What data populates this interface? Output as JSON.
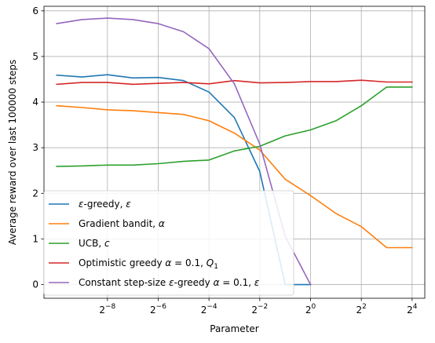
{
  "chart_data": {
    "type": "line",
    "xlabel": "Parameter",
    "ylabel": "Average reward over last 100000 steps",
    "x_scale": "log2",
    "xlim_exponent": [
      -10.5,
      4.5
    ],
    "ylim": [
      -0.3,
      6.1
    ],
    "x_tick_exponents": [
      -8,
      -6,
      -4,
      -2,
      0,
      2,
      4
    ],
    "x_tick_labels": [
      {
        "base": "2",
        "exp": "−8"
      },
      {
        "base": "2",
        "exp": "−6"
      },
      {
        "base": "2",
        "exp": "−4"
      },
      {
        "base": "2",
        "exp": "−2"
      },
      {
        "base": "2",
        "exp": "0"
      },
      {
        "base": "2",
        "exp": "2"
      },
      {
        "base": "2",
        "exp": "4"
      }
    ],
    "y_ticks": [
      0,
      1,
      2,
      3,
      4,
      5,
      6
    ],
    "y_tick_labels": [
      "0",
      "1",
      "2",
      "3",
      "4",
      "5",
      "6"
    ],
    "grid": true,
    "legend_position": "lower-left",
    "series": [
      {
        "legend_parts": [
          {
            "t": "ε",
            "i": true
          },
          {
            "t": "-greedy, "
          },
          {
            "t": "ε",
            "i": true
          }
        ],
        "color": "#1f77b4",
        "x_exp": [
          -10,
          -9,
          -8,
          -7,
          -6,
          -5,
          -4,
          -3,
          -2,
          -1,
          0
        ],
        "values": [
          4.59,
          4.55,
          4.6,
          4.53,
          4.54,
          4.47,
          4.22,
          3.66,
          2.48,
          0.0,
          0.0
        ]
      },
      {
        "legend_parts": [
          {
            "t": "Gradient bandit, "
          },
          {
            "t": "α",
            "i": true
          }
        ],
        "color": "#ff7f0e",
        "x_exp": [
          -10,
          -9,
          -8,
          -7,
          -6,
          -5,
          -4,
          -3,
          -2,
          -1,
          0,
          1,
          2,
          3,
          4
        ],
        "values": [
          3.92,
          3.88,
          3.83,
          3.81,
          3.77,
          3.73,
          3.59,
          3.32,
          2.95,
          2.31,
          1.95,
          1.56,
          1.27,
          0.81,
          0.81
        ]
      },
      {
        "legend_parts": [
          {
            "t": "UCB, "
          },
          {
            "t": "c",
            "i": true
          }
        ],
        "color": "#2ca02c",
        "x_exp": [
          -10,
          -9,
          -8,
          -7,
          -6,
          -5,
          -4,
          -3,
          -2,
          -1,
          0,
          1,
          2,
          3,
          4
        ],
        "values": [
          2.59,
          2.6,
          2.62,
          2.62,
          2.65,
          2.7,
          2.73,
          2.93,
          3.03,
          3.26,
          3.39,
          3.59,
          3.92,
          4.33,
          4.33
        ]
      },
      {
        "legend_parts": [
          {
            "t": "Optimistic greedy "
          },
          {
            "t": "α",
            "i": true
          },
          {
            "t": " = 0.1, "
          },
          {
            "t": "Q",
            "i": true
          },
          {
            "t": "1",
            "sub": true
          }
        ],
        "color": "#d62728",
        "x_exp": [
          -10,
          -9,
          -8,
          -7,
          -6,
          -5,
          -4,
          -3,
          -2,
          -1,
          0,
          1,
          2,
          3,
          4
        ],
        "values": [
          4.39,
          4.43,
          4.43,
          4.39,
          4.41,
          4.43,
          4.4,
          4.47,
          4.42,
          4.43,
          4.45,
          4.45,
          4.48,
          4.44,
          4.44
        ]
      },
      {
        "legend_parts": [
          {
            "t": "Constant step-size "
          },
          {
            "t": "ε",
            "i": true
          },
          {
            "t": "-greedy "
          },
          {
            "t": "α",
            "i": true
          },
          {
            "t": " = 0.1, "
          },
          {
            "t": "ε",
            "i": true
          }
        ],
        "color": "#9467bd",
        "x_exp": [
          -10,
          -9,
          -8,
          -7,
          -6,
          -5,
          -4,
          -3,
          -2,
          -1,
          0
        ],
        "values": [
          5.72,
          5.81,
          5.84,
          5.81,
          5.72,
          5.54,
          5.17,
          4.4,
          3.08,
          1.06,
          0.0
        ]
      }
    ]
  }
}
